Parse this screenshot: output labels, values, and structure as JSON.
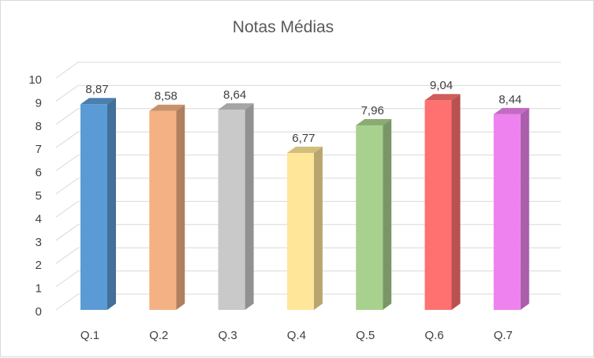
{
  "chart_data": {
    "type": "bar",
    "title": "Notas Médias",
    "categories": [
      "Q.1",
      "Q.2",
      "Q.3",
      "Q.4",
      "Q.5",
      "Q.6",
      "Q.7"
    ],
    "values": [
      8.87,
      8.58,
      8.64,
      6.77,
      7.96,
      9.04,
      8.44
    ],
    "value_labels": [
      "8,87",
      "8,58",
      "8,64",
      "6,77",
      "7,96",
      "9,04",
      "8,44"
    ],
    "yticks": [
      "0",
      "1",
      "2",
      "3",
      "4",
      "5",
      "6",
      "7",
      "8",
      "9",
      "10"
    ],
    "ylim": [
      0,
      10
    ],
    "grid": true,
    "style": "3d-column",
    "legend": "none",
    "colors": [
      "#5b9bd5",
      "#f4b183",
      "#c9c9c9",
      "#ffe699",
      "#a9d18e",
      "#ff7070",
      "#ee82ee"
    ]
  }
}
